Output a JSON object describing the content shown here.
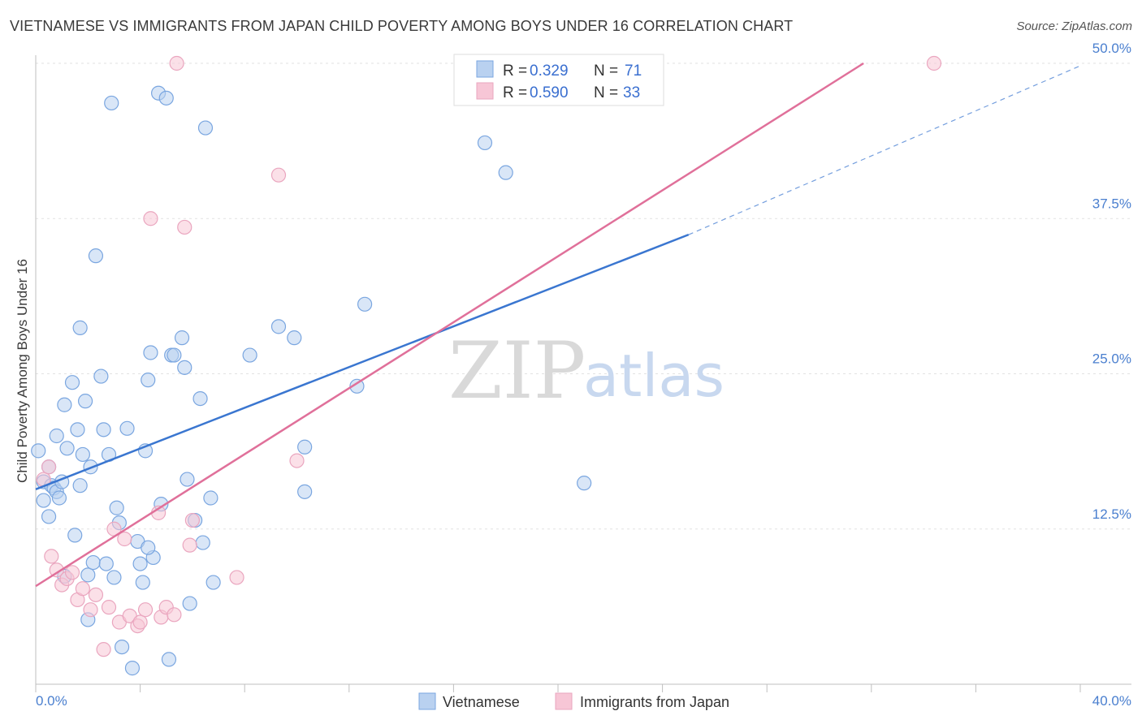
{
  "title": "VIETNAMESE VS IMMIGRANTS FROM JAPAN CHILD POVERTY AMONG BOYS UNDER 16 CORRELATION CHART",
  "source": "Source: ZipAtlas.com",
  "watermark": {
    "zip": "ZIP",
    "atlas": "atlas"
  },
  "chart_data": {
    "type": "scatter",
    "title": "VIETNAMESE VS IMMIGRANTS FROM JAPAN CHILD POVERTY AMONG BOYS UNDER 16 CORRELATION CHART",
    "xlabel": "",
    "ylabel": "Child Poverty Among Boys Under 16",
    "xlim": [
      0,
      40
    ],
    "ylim": [
      0,
      50
    ],
    "x_tick_labels": {
      "min": "0.0%",
      "max": "40.0%"
    },
    "y_ticks": [
      {
        "value": 12.5,
        "label": "12.5%"
      },
      {
        "value": 25.0,
        "label": "25.0%"
      },
      {
        "value": 37.5,
        "label": "37.5%"
      },
      {
        "value": 50.0,
        "label": "50.0%"
      }
    ],
    "legend": [
      {
        "r_label": "R =",
        "r": "0.329",
        "n_label": "N =",
        "n": "71"
      },
      {
        "r_label": "R =",
        "r": "0.590",
        "n_label": "N =",
        "n": "33"
      }
    ],
    "series": [
      {
        "name": "Vietnamese",
        "color": "#7aa6e0",
        "fill": "#b9d1f0",
        "trend_color": "#3a76d0",
        "trend": {
          "x0": 0,
          "y0": 15.7,
          "x1": 25,
          "y1": 36.2,
          "dash_to_x": 40,
          "dash_to_y": 49.8
        },
        "points": [
          [
            0.1,
            18.8
          ],
          [
            0.3,
            16.3
          ],
          [
            0.3,
            14.8
          ],
          [
            0.5,
            13.5
          ],
          [
            0.5,
            17.5
          ],
          [
            0.6,
            16.0
          ],
          [
            0.7,
            15.8
          ],
          [
            0.8,
            20.0
          ],
          [
            0.8,
            15.5
          ],
          [
            0.9,
            15.0
          ],
          [
            1.0,
            16.3
          ],
          [
            1.1,
            22.5
          ],
          [
            1.2,
            19.0
          ],
          [
            1.4,
            24.3
          ],
          [
            1.5,
            12.0
          ],
          [
            1.6,
            20.5
          ],
          [
            1.7,
            16.0
          ],
          [
            1.7,
            28.7
          ],
          [
            1.8,
            18.5
          ],
          [
            1.9,
            22.8
          ],
          [
            2.0,
            8.8
          ],
          [
            2.1,
            17.5
          ],
          [
            2.2,
            9.8
          ],
          [
            2.3,
            34.5
          ],
          [
            2.5,
            24.8
          ],
          [
            2.6,
            20.5
          ],
          [
            2.7,
            9.7
          ],
          [
            2.8,
            18.5
          ],
          [
            2.9,
            46.8
          ],
          [
            3.0,
            8.6
          ],
          [
            3.1,
            14.2
          ],
          [
            3.2,
            13.0
          ],
          [
            3.3,
            3.0
          ],
          [
            3.5,
            20.6
          ],
          [
            3.7,
            1.3
          ],
          [
            3.9,
            11.5
          ],
          [
            4.0,
            9.7
          ],
          [
            4.1,
            8.2
          ],
          [
            4.2,
            18.8
          ],
          [
            4.3,
            24.5
          ],
          [
            4.4,
            26.7
          ],
          [
            4.5,
            10.2
          ],
          [
            4.8,
            14.5
          ],
          [
            4.7,
            47.6
          ],
          [
            5.0,
            47.2
          ],
          [
            5.1,
            2.0
          ],
          [
            5.2,
            26.5
          ],
          [
            5.3,
            26.5
          ],
          [
            5.6,
            27.9
          ],
          [
            5.7,
            25.5
          ],
          [
            5.8,
            16.5
          ],
          [
            5.9,
            6.5
          ],
          [
            6.1,
            13.2
          ],
          [
            6.3,
            23.0
          ],
          [
            6.4,
            11.4
          ],
          [
            6.5,
            44.8
          ],
          [
            6.7,
            15.0
          ],
          [
            6.8,
            8.2
          ],
          [
            8.2,
            26.5
          ],
          [
            9.3,
            28.8
          ],
          [
            9.9,
            27.9
          ],
          [
            10.3,
            15.5
          ],
          [
            10.3,
            19.1
          ],
          [
            12.3,
            24.0
          ],
          [
            12.6,
            30.6
          ],
          [
            17.2,
            43.6
          ],
          [
            18.0,
            41.2
          ],
          [
            21.0,
            16.2
          ],
          [
            1.1,
            8.7
          ],
          [
            2.0,
            5.2
          ],
          [
            4.3,
            11.0
          ]
        ]
      },
      {
        "name": "Immigrants from Japan",
        "color": "#eaa6bf",
        "fill": "#f7c6d6",
        "trend_color": "#e0709a",
        "trend": {
          "x0": 0,
          "y0": 7.9,
          "x1": 31.7,
          "y1": 50.0
        },
        "points": [
          [
            0.3,
            16.5
          ],
          [
            0.5,
            17.5
          ],
          [
            0.6,
            10.3
          ],
          [
            0.8,
            9.2
          ],
          [
            1.0,
            8.0
          ],
          [
            1.2,
            8.5
          ],
          [
            1.4,
            9.0
          ],
          [
            1.6,
            6.8
          ],
          [
            1.8,
            7.7
          ],
          [
            2.1,
            6.0
          ],
          [
            2.3,
            7.2
          ],
          [
            2.6,
            2.8
          ],
          [
            2.8,
            6.2
          ],
          [
            3.0,
            12.5
          ],
          [
            3.2,
            5.0
          ],
          [
            3.4,
            11.7
          ],
          [
            3.6,
            5.5
          ],
          [
            3.9,
            4.7
          ],
          [
            4.0,
            5.0
          ],
          [
            4.2,
            6.0
          ],
          [
            4.4,
            37.5
          ],
          [
            4.7,
            13.8
          ],
          [
            4.8,
            5.4
          ],
          [
            5.0,
            6.2
          ],
          [
            5.3,
            5.6
          ],
          [
            5.4,
            50.0
          ],
          [
            5.7,
            36.8
          ],
          [
            5.9,
            11.2
          ],
          [
            6.0,
            13.2
          ],
          [
            7.7,
            8.6
          ],
          [
            9.3,
            41.0
          ],
          [
            10.0,
            18.0
          ],
          [
            34.4,
            50.0
          ]
        ]
      }
    ]
  }
}
